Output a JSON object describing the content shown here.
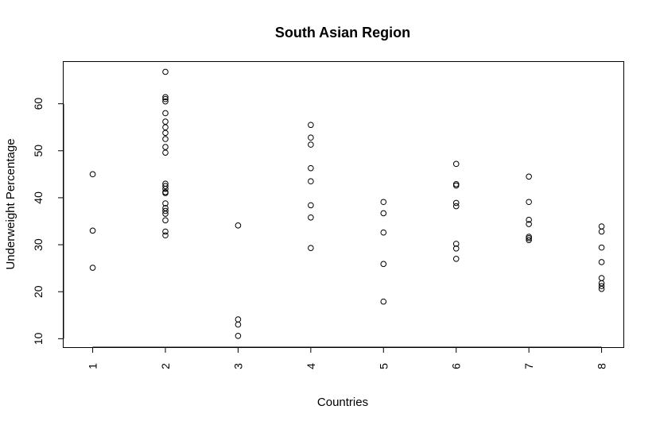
{
  "chart_data": {
    "type": "scatter",
    "title": "South Asian Region",
    "xlabel": "Countries",
    "ylabel": "Underweight Percentage",
    "x_ticks": [
      1,
      2,
      3,
      4,
      5,
      6,
      7,
      8
    ],
    "y_ticks": [
      10,
      20,
      30,
      40,
      50,
      60
    ],
    "xlim": [
      0.6,
      8.3
    ],
    "ylim": [
      8.2,
      68.9
    ],
    "grid": false,
    "series": [
      {
        "points": [
          {
            "x": 1,
            "y": 45.0
          },
          {
            "x": 1,
            "y": 33.0
          },
          {
            "x": 1,
            "y": 25.1
          },
          {
            "x": 2,
            "y": 66.8
          },
          {
            "x": 2,
            "y": 61.4
          },
          {
            "x": 2,
            "y": 61.0
          },
          {
            "x": 2,
            "y": 60.5
          },
          {
            "x": 2,
            "y": 58.0
          },
          {
            "x": 2,
            "y": 56.2
          },
          {
            "x": 2,
            "y": 55.0
          },
          {
            "x": 2,
            "y": 53.8
          },
          {
            "x": 2,
            "y": 52.5
          },
          {
            "x": 2,
            "y": 50.8
          },
          {
            "x": 2,
            "y": 49.6
          },
          {
            "x": 2,
            "y": 43.0
          },
          {
            "x": 2,
            "y": 42.5
          },
          {
            "x": 2,
            "y": 41.9
          },
          {
            "x": 2,
            "y": 41.2
          },
          {
            "x": 2,
            "y": 41.0
          },
          {
            "x": 2,
            "y": 38.8
          },
          {
            "x": 2,
            "y": 37.8
          },
          {
            "x": 2,
            "y": 37.2
          },
          {
            "x": 2,
            "y": 36.6
          },
          {
            "x": 2,
            "y": 35.2
          },
          {
            "x": 2,
            "y": 32.8
          },
          {
            "x": 2,
            "y": 32.0
          },
          {
            "x": 3,
            "y": 34.1
          },
          {
            "x": 3,
            "y": 14.1
          },
          {
            "x": 3,
            "y": 13.0
          },
          {
            "x": 3,
            "y": 10.6
          },
          {
            "x": 4,
            "y": 55.5
          },
          {
            "x": 4,
            "y": 52.8
          },
          {
            "x": 4,
            "y": 51.3
          },
          {
            "x": 4,
            "y": 46.3
          },
          {
            "x": 4,
            "y": 43.5
          },
          {
            "x": 4,
            "y": 38.4
          },
          {
            "x": 4,
            "y": 35.8
          },
          {
            "x": 4,
            "y": 29.3
          },
          {
            "x": 5,
            "y": 39.1
          },
          {
            "x": 5,
            "y": 36.7
          },
          {
            "x": 5,
            "y": 32.6
          },
          {
            "x": 5,
            "y": 25.9
          },
          {
            "x": 5,
            "y": 17.9
          },
          {
            "x": 6,
            "y": 47.2
          },
          {
            "x": 6,
            "y": 42.9
          },
          {
            "x": 6,
            "y": 42.6
          },
          {
            "x": 6,
            "y": 38.9
          },
          {
            "x": 6,
            "y": 38.2
          },
          {
            "x": 6,
            "y": 30.2
          },
          {
            "x": 6,
            "y": 29.2
          },
          {
            "x": 6,
            "y": 27.0
          },
          {
            "x": 7,
            "y": 44.5
          },
          {
            "x": 7,
            "y": 39.1
          },
          {
            "x": 7,
            "y": 35.3
          },
          {
            "x": 7,
            "y": 34.4
          },
          {
            "x": 7,
            "y": 31.7
          },
          {
            "x": 7,
            "y": 31.4
          },
          {
            "x": 7,
            "y": 31.0
          },
          {
            "x": 8,
            "y": 33.9
          },
          {
            "x": 8,
            "y": 32.8
          },
          {
            "x": 8,
            "y": 29.4
          },
          {
            "x": 8,
            "y": 26.3
          },
          {
            "x": 8,
            "y": 22.9
          },
          {
            "x": 8,
            "y": 21.8
          },
          {
            "x": 8,
            "y": 21.2
          },
          {
            "x": 8,
            "y": 20.6
          }
        ]
      }
    ]
  }
}
